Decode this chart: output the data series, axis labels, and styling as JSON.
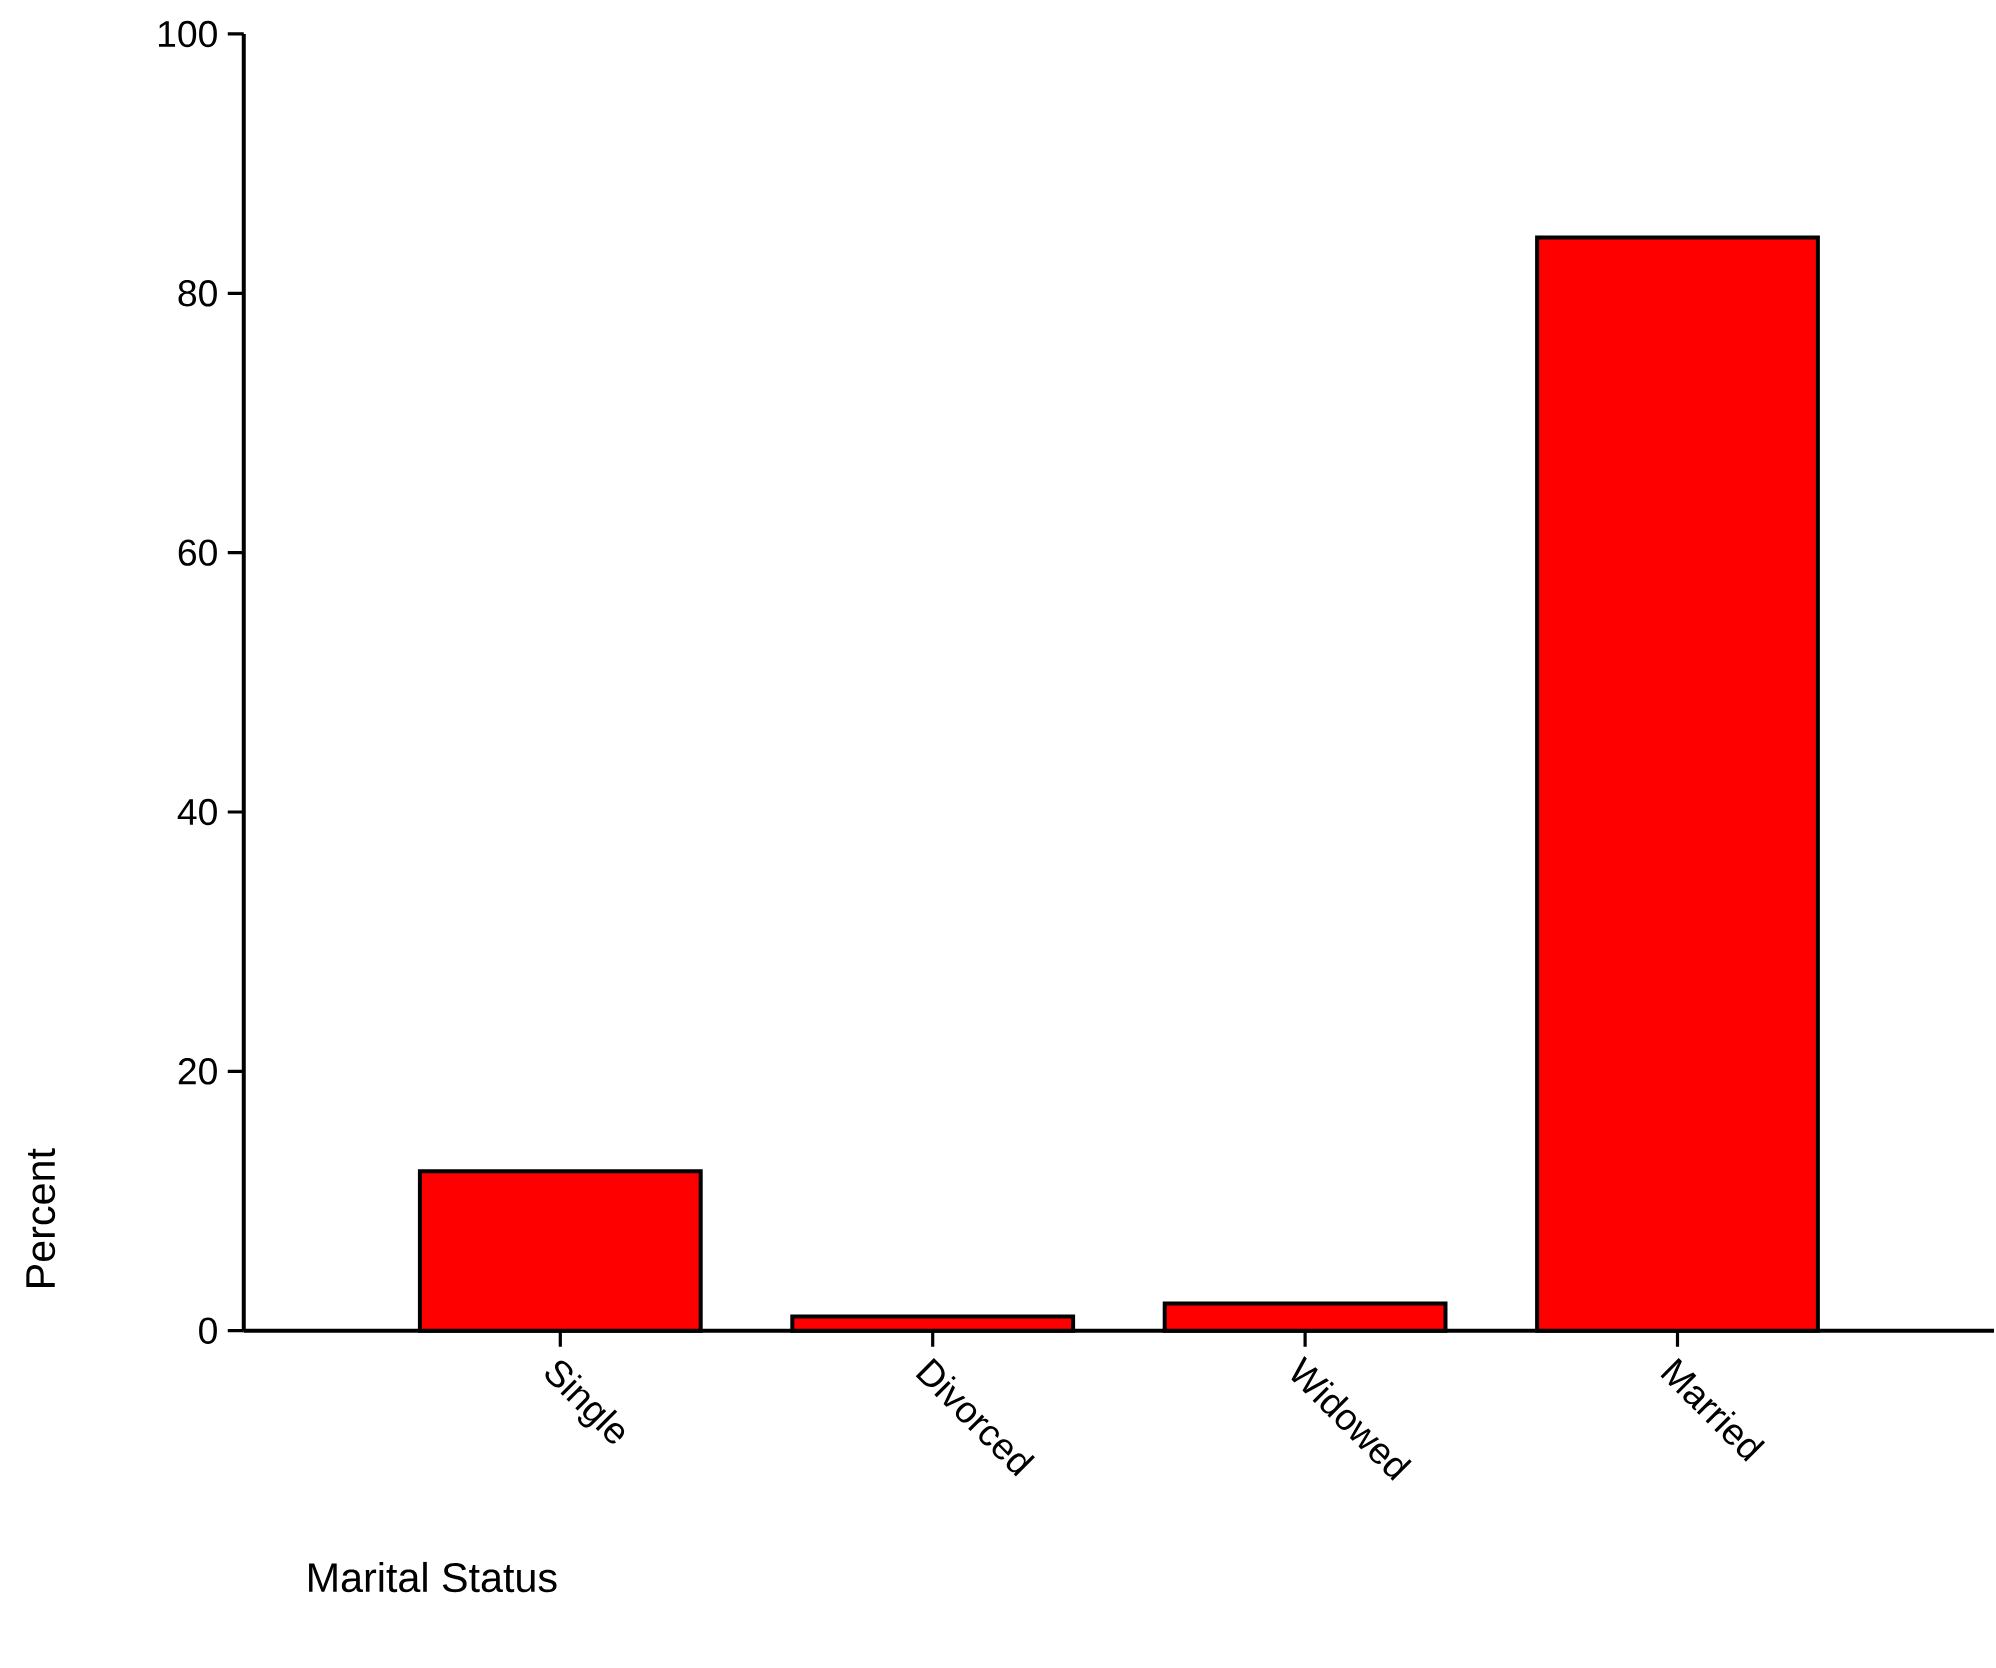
{
  "chart_data": {
    "type": "bar",
    "xlabel": "Marital Status",
    "ylabel": "Percent",
    "categories": [
      "Single",
      "Divorced",
      "Widowed",
      "Married"
    ],
    "values": [
      12.3,
      1.1,
      2.1,
      84.3
    ],
    "color": "#ff0000",
    "ylim": [
      0,
      100
    ],
    "yticks": [
      0,
      20,
      40,
      60,
      80,
      100
    ]
  }
}
